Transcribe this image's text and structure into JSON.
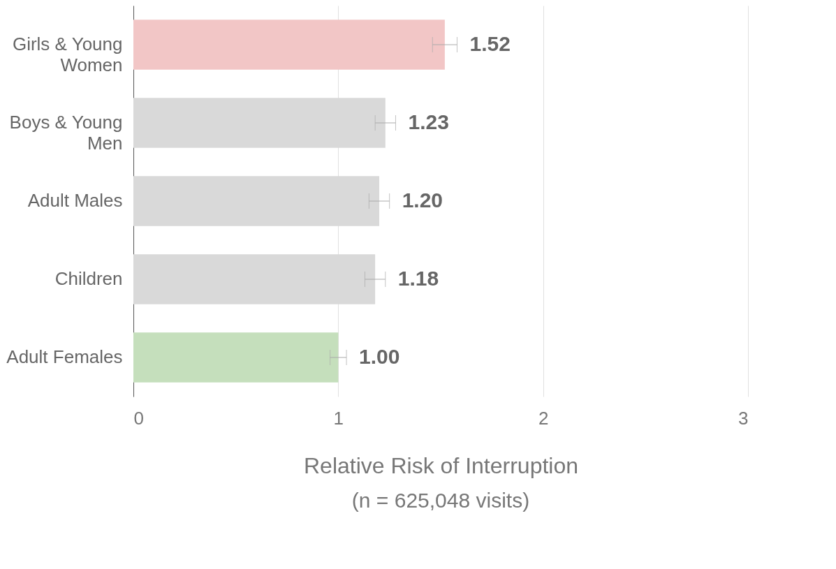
{
  "chart_data": {
    "type": "bar",
    "orientation": "horizontal",
    "xlabel": "Relative Risk of Interruption",
    "annotations": [
      "(n = 625,048 visits)"
    ],
    "categories": [
      "Girls & Young Women",
      "Boys & Young Men",
      "Adult Males",
      "Children",
      "Adult Females"
    ],
    "values": [
      1.52,
      1.23,
      1.2,
      1.18,
      1.0
    ],
    "colors": [
      "#f2c6c6",
      "#d9d9d9",
      "#d9d9d9",
      "#d9d9d9",
      "#c5dfbc"
    ],
    "errors": [
      [
        1.46,
        1.58
      ],
      [
        1.18,
        1.28
      ],
      [
        1.15,
        1.25
      ],
      [
        1.13,
        1.23
      ],
      [
        0.96,
        1.04
      ]
    ],
    "value_labels": [
      "1.52",
      "1.23",
      "1.20",
      "1.18",
      "1.00"
    ],
    "xlim": [
      0,
      3
    ],
    "xticks": [
      0,
      1,
      2,
      3
    ],
    "grid": "x"
  }
}
